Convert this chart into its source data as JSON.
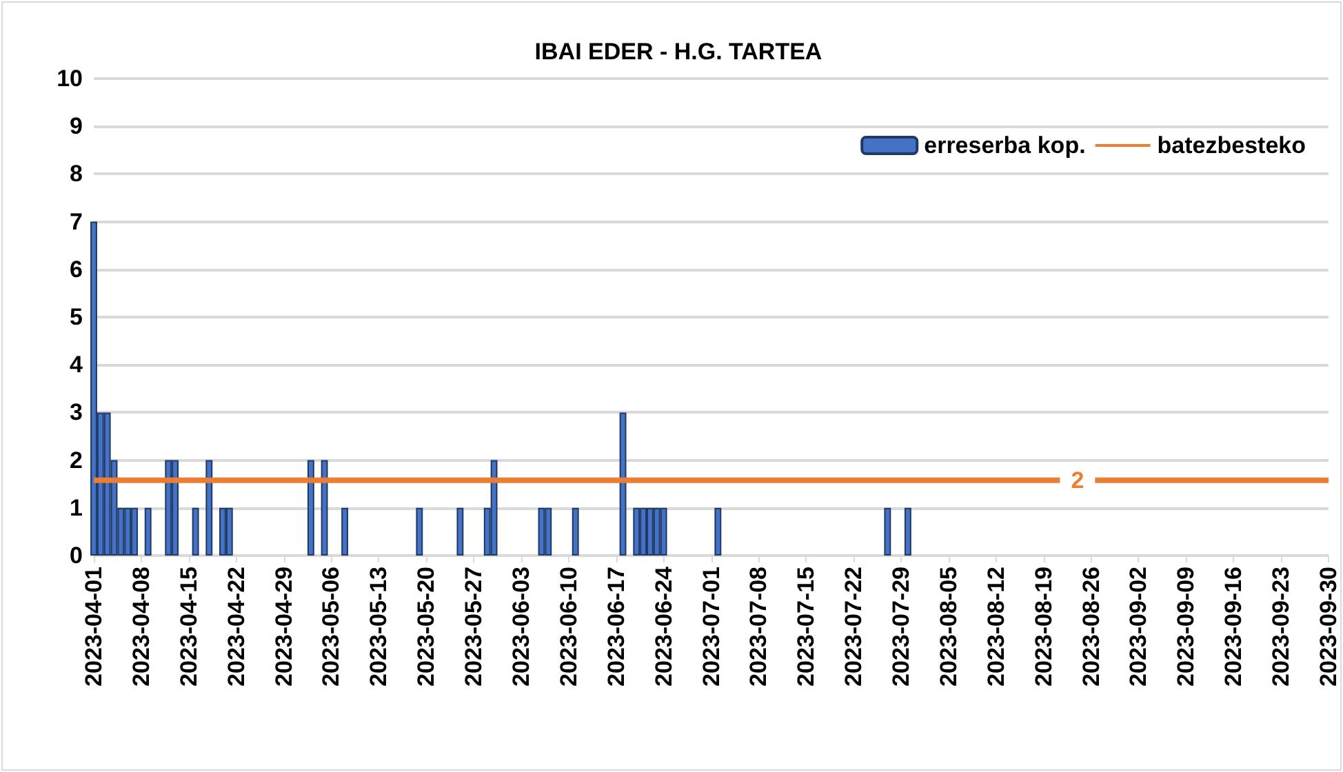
{
  "chart_data": {
    "type": "bar",
    "title": "IBAI EDER - H.G. TARTEA",
    "xlim": [
      "2023-04-01",
      "2023-09-30"
    ],
    "xticks": [
      "2023-04-01",
      "2023-04-08",
      "2023-04-15",
      "2023-04-22",
      "2023-04-29",
      "2023-05-06",
      "2023-05-13",
      "2023-05-20",
      "2023-05-27",
      "2023-06-03",
      "2023-06-10",
      "2023-06-17",
      "2023-06-24",
      "2023-07-01",
      "2023-07-08",
      "2023-07-15",
      "2023-07-22",
      "2023-07-29",
      "2023-08-05",
      "2023-08-12",
      "2023-08-19",
      "2023-08-26",
      "2023-09-02",
      "2023-09-09",
      "2023-09-16",
      "2023-09-23",
      "2023-09-30"
    ],
    "ylim": [
      0,
      10
    ],
    "yticks": [
      0,
      1,
      2,
      3,
      4,
      5,
      6,
      7,
      8,
      9,
      10
    ],
    "grid": "y",
    "legend": "top right",
    "series": [
      {
        "name": "erreserba kop.",
        "color": "#4472c4",
        "x": [
          "2023-04-01",
          "2023-04-02",
          "2023-04-03",
          "2023-04-04",
          "2023-04-05",
          "2023-04-06",
          "2023-04-07",
          "2023-04-09",
          "2023-04-12",
          "2023-04-13",
          "2023-04-16",
          "2023-04-18",
          "2023-04-20",
          "2023-04-21",
          "2023-05-03",
          "2023-05-05",
          "2023-05-08",
          "2023-05-19",
          "2023-05-25",
          "2023-05-29",
          "2023-05-30",
          "2023-06-06",
          "2023-06-07",
          "2023-06-11",
          "2023-06-18",
          "2023-06-20",
          "2023-06-21",
          "2023-06-22",
          "2023-06-23",
          "2023-06-24",
          "2023-07-02",
          "2023-07-27",
          "2023-07-30"
        ],
        "values": [
          7,
          3,
          3,
          2,
          1,
          1,
          1,
          1,
          2,
          2,
          1,
          2,
          1,
          1,
          2,
          2,
          1,
          1,
          1,
          1,
          2,
          1,
          1,
          1,
          3,
          1,
          1,
          1,
          1,
          1,
          1,
          1,
          1
        ]
      },
      {
        "name": "batezbesteko",
        "type": "line",
        "color": "#ed7d31",
        "marker": "none",
        "x": [
          "2023-04-01",
          "2023-08-24",
          "2023-09-30"
        ],
        "values": [
          1.58,
          1.58,
          1.58
        ],
        "value_labels": [
          null,
          "2",
          null
        ]
      }
    ]
  }
}
